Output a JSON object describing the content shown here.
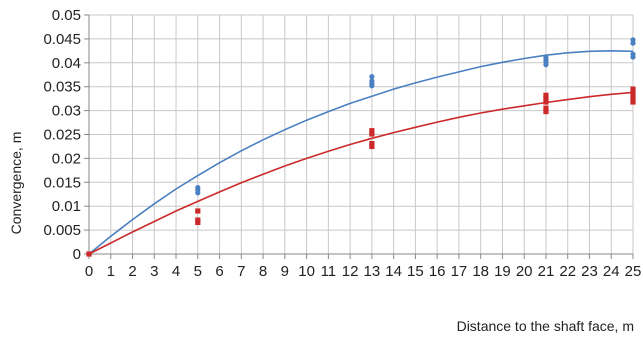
{
  "chart_data": {
    "type": "scatter",
    "title": "",
    "xlabel": "Distance to the shaft face, m",
    "ylabel": "Convergence, m",
    "xlim": [
      0,
      25
    ],
    "ylim": [
      0,
      0.05
    ],
    "grid": true,
    "legend": "none",
    "x_ticks": [
      0,
      1,
      2,
      3,
      4,
      5,
      6,
      7,
      8,
      9,
      10,
      11,
      12,
      13,
      14,
      15,
      16,
      17,
      18,
      19,
      20,
      21,
      22,
      23,
      24,
      25
    ],
    "y_ticks": [
      0,
      0.005,
      0.01,
      0.015,
      0.02,
      0.025,
      0.03,
      0.035,
      0.04,
      0.045,
      0.05
    ],
    "y_tick_labels": [
      "0",
      "0.005",
      "0.01",
      "0.015",
      "0.02",
      "0.025",
      "0.03",
      "0.035",
      "0.04",
      "0.045",
      "0.05"
    ],
    "series": [
      {
        "color": "#4a7fc1",
        "points": [
          [
            0,
            0
          ],
          [
            5,
            0.0128
          ],
          [
            5,
            0.0134
          ],
          [
            5,
            0.0139
          ],
          [
            13,
            0.0352
          ],
          [
            13,
            0.0357
          ],
          [
            13,
            0.0362
          ],
          [
            13,
            0.0371
          ],
          [
            21,
            0.0396
          ],
          [
            21,
            0.0402
          ],
          [
            21,
            0.0406
          ],
          [
            21,
            0.0411
          ],
          [
            25,
            0.0412
          ],
          [
            25,
            0.0418
          ],
          [
            25,
            0.0441
          ],
          [
            25,
            0.0448
          ]
        ],
        "fit_curve": [
          [
            0,
            0
          ],
          [
            1,
            0.0037
          ],
          [
            2,
            0.0072
          ],
          [
            3,
            0.0105
          ],
          [
            4,
            0.0136
          ],
          [
            5,
            0.0164
          ],
          [
            6,
            0.0191
          ],
          [
            7,
            0.0216
          ],
          [
            8,
            0.0239
          ],
          [
            9,
            0.026
          ],
          [
            10,
            0.028
          ],
          [
            11,
            0.0298
          ],
          [
            12,
            0.0315
          ],
          [
            13,
            0.033
          ],
          [
            14,
            0.0345
          ],
          [
            15,
            0.0358
          ],
          [
            16,
            0.037
          ],
          [
            17,
            0.0381
          ],
          [
            18,
            0.0392
          ],
          [
            19,
            0.0401
          ],
          [
            20,
            0.0409
          ],
          [
            21,
            0.0416
          ],
          [
            22,
            0.0421
          ],
          [
            23,
            0.0424
          ],
          [
            24,
            0.0425
          ],
          [
            25,
            0.0424
          ]
        ]
      },
      {
        "color": "#cc2a2a",
        "points": [
          [
            0,
            0
          ],
          [
            5,
            0.0066
          ],
          [
            5,
            0.0071
          ],
          [
            5,
            0.009
          ],
          [
            13,
            0.0225
          ],
          [
            13,
            0.0231
          ],
          [
            13,
            0.0251
          ],
          [
            13,
            0.0258
          ],
          [
            21,
            0.0298
          ],
          [
            21,
            0.0305
          ],
          [
            21,
            0.0318
          ],
          [
            21,
            0.0325
          ],
          [
            21,
            0.0332
          ],
          [
            25,
            0.0318
          ],
          [
            25,
            0.0326
          ],
          [
            25,
            0.0335
          ],
          [
            25,
            0.0345
          ]
        ],
        "fit_curve": [
          [
            0,
            0
          ],
          [
            1,
            0.0023
          ],
          [
            2,
            0.0046
          ],
          [
            3,
            0.0068
          ],
          [
            4,
            0.009
          ],
          [
            5,
            0.011
          ],
          [
            6,
            0.013
          ],
          [
            7,
            0.0149
          ],
          [
            8,
            0.0167
          ],
          [
            9,
            0.0184
          ],
          [
            10,
            0.02
          ],
          [
            11,
            0.0215
          ],
          [
            12,
            0.0229
          ],
          [
            13,
            0.0242
          ],
          [
            14,
            0.0254
          ],
          [
            15,
            0.0265
          ],
          [
            16,
            0.0276
          ],
          [
            17,
            0.0286
          ],
          [
            18,
            0.0295
          ],
          [
            19,
            0.0303
          ],
          [
            20,
            0.031
          ],
          [
            21,
            0.0317
          ],
          [
            22,
            0.0323
          ],
          [
            23,
            0.0329
          ],
          [
            24,
            0.0334
          ],
          [
            25,
            0.0338
          ]
        ]
      }
    ]
  }
}
